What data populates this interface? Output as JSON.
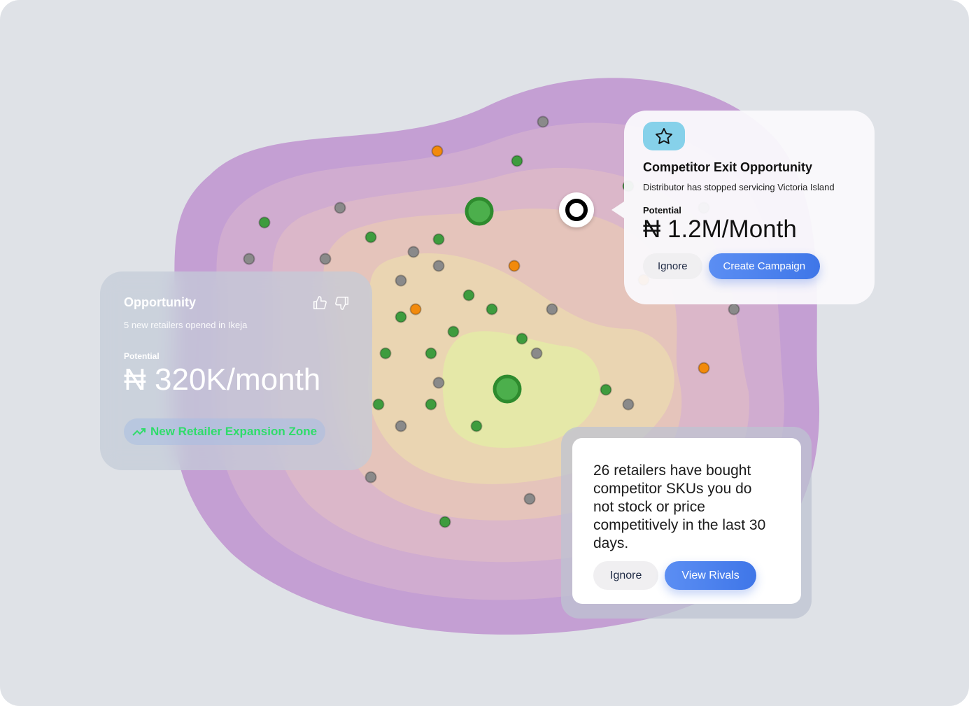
{
  "map": {
    "zone_colors": [
      "#c49fd3",
      "#d0acd0",
      "#dbb7c9",
      "#e5c4bb",
      "#ead5b2",
      "#e5e8a8"
    ],
    "marker_colors": {
      "retailer": "#3e9c3e",
      "inactive": "#8a8a8a",
      "opportunity": "#f28a0c"
    }
  },
  "opportunity_card": {
    "title": "Opportunity",
    "subtitle": "5 new retailers opened in Ikeja",
    "potential_label": "Potential",
    "potential_value": "₦ 320K/month",
    "tag": "New Retailer Expansion Zone",
    "tag_icon": "trending-up-icon",
    "like_icon": "thumbs-up-icon",
    "dislike_icon": "thumbs-down-icon"
  },
  "competitor_card": {
    "icon": "star-icon",
    "title": "Competitor Exit Opportunity",
    "subtitle": "Distributor has stopped servicing Victoria Island",
    "potential_label": "Potential",
    "potential_value": "₦ 1.2M/Month",
    "ignore_label": "Ignore",
    "cta_label": "Create Campaign"
  },
  "rivals_card": {
    "message": "26 retailers have bought competitor SKUs you do not stock or price competitively in the last 30 days.",
    "ignore_label": "Ignore",
    "cta_label": "View Rivals"
  }
}
